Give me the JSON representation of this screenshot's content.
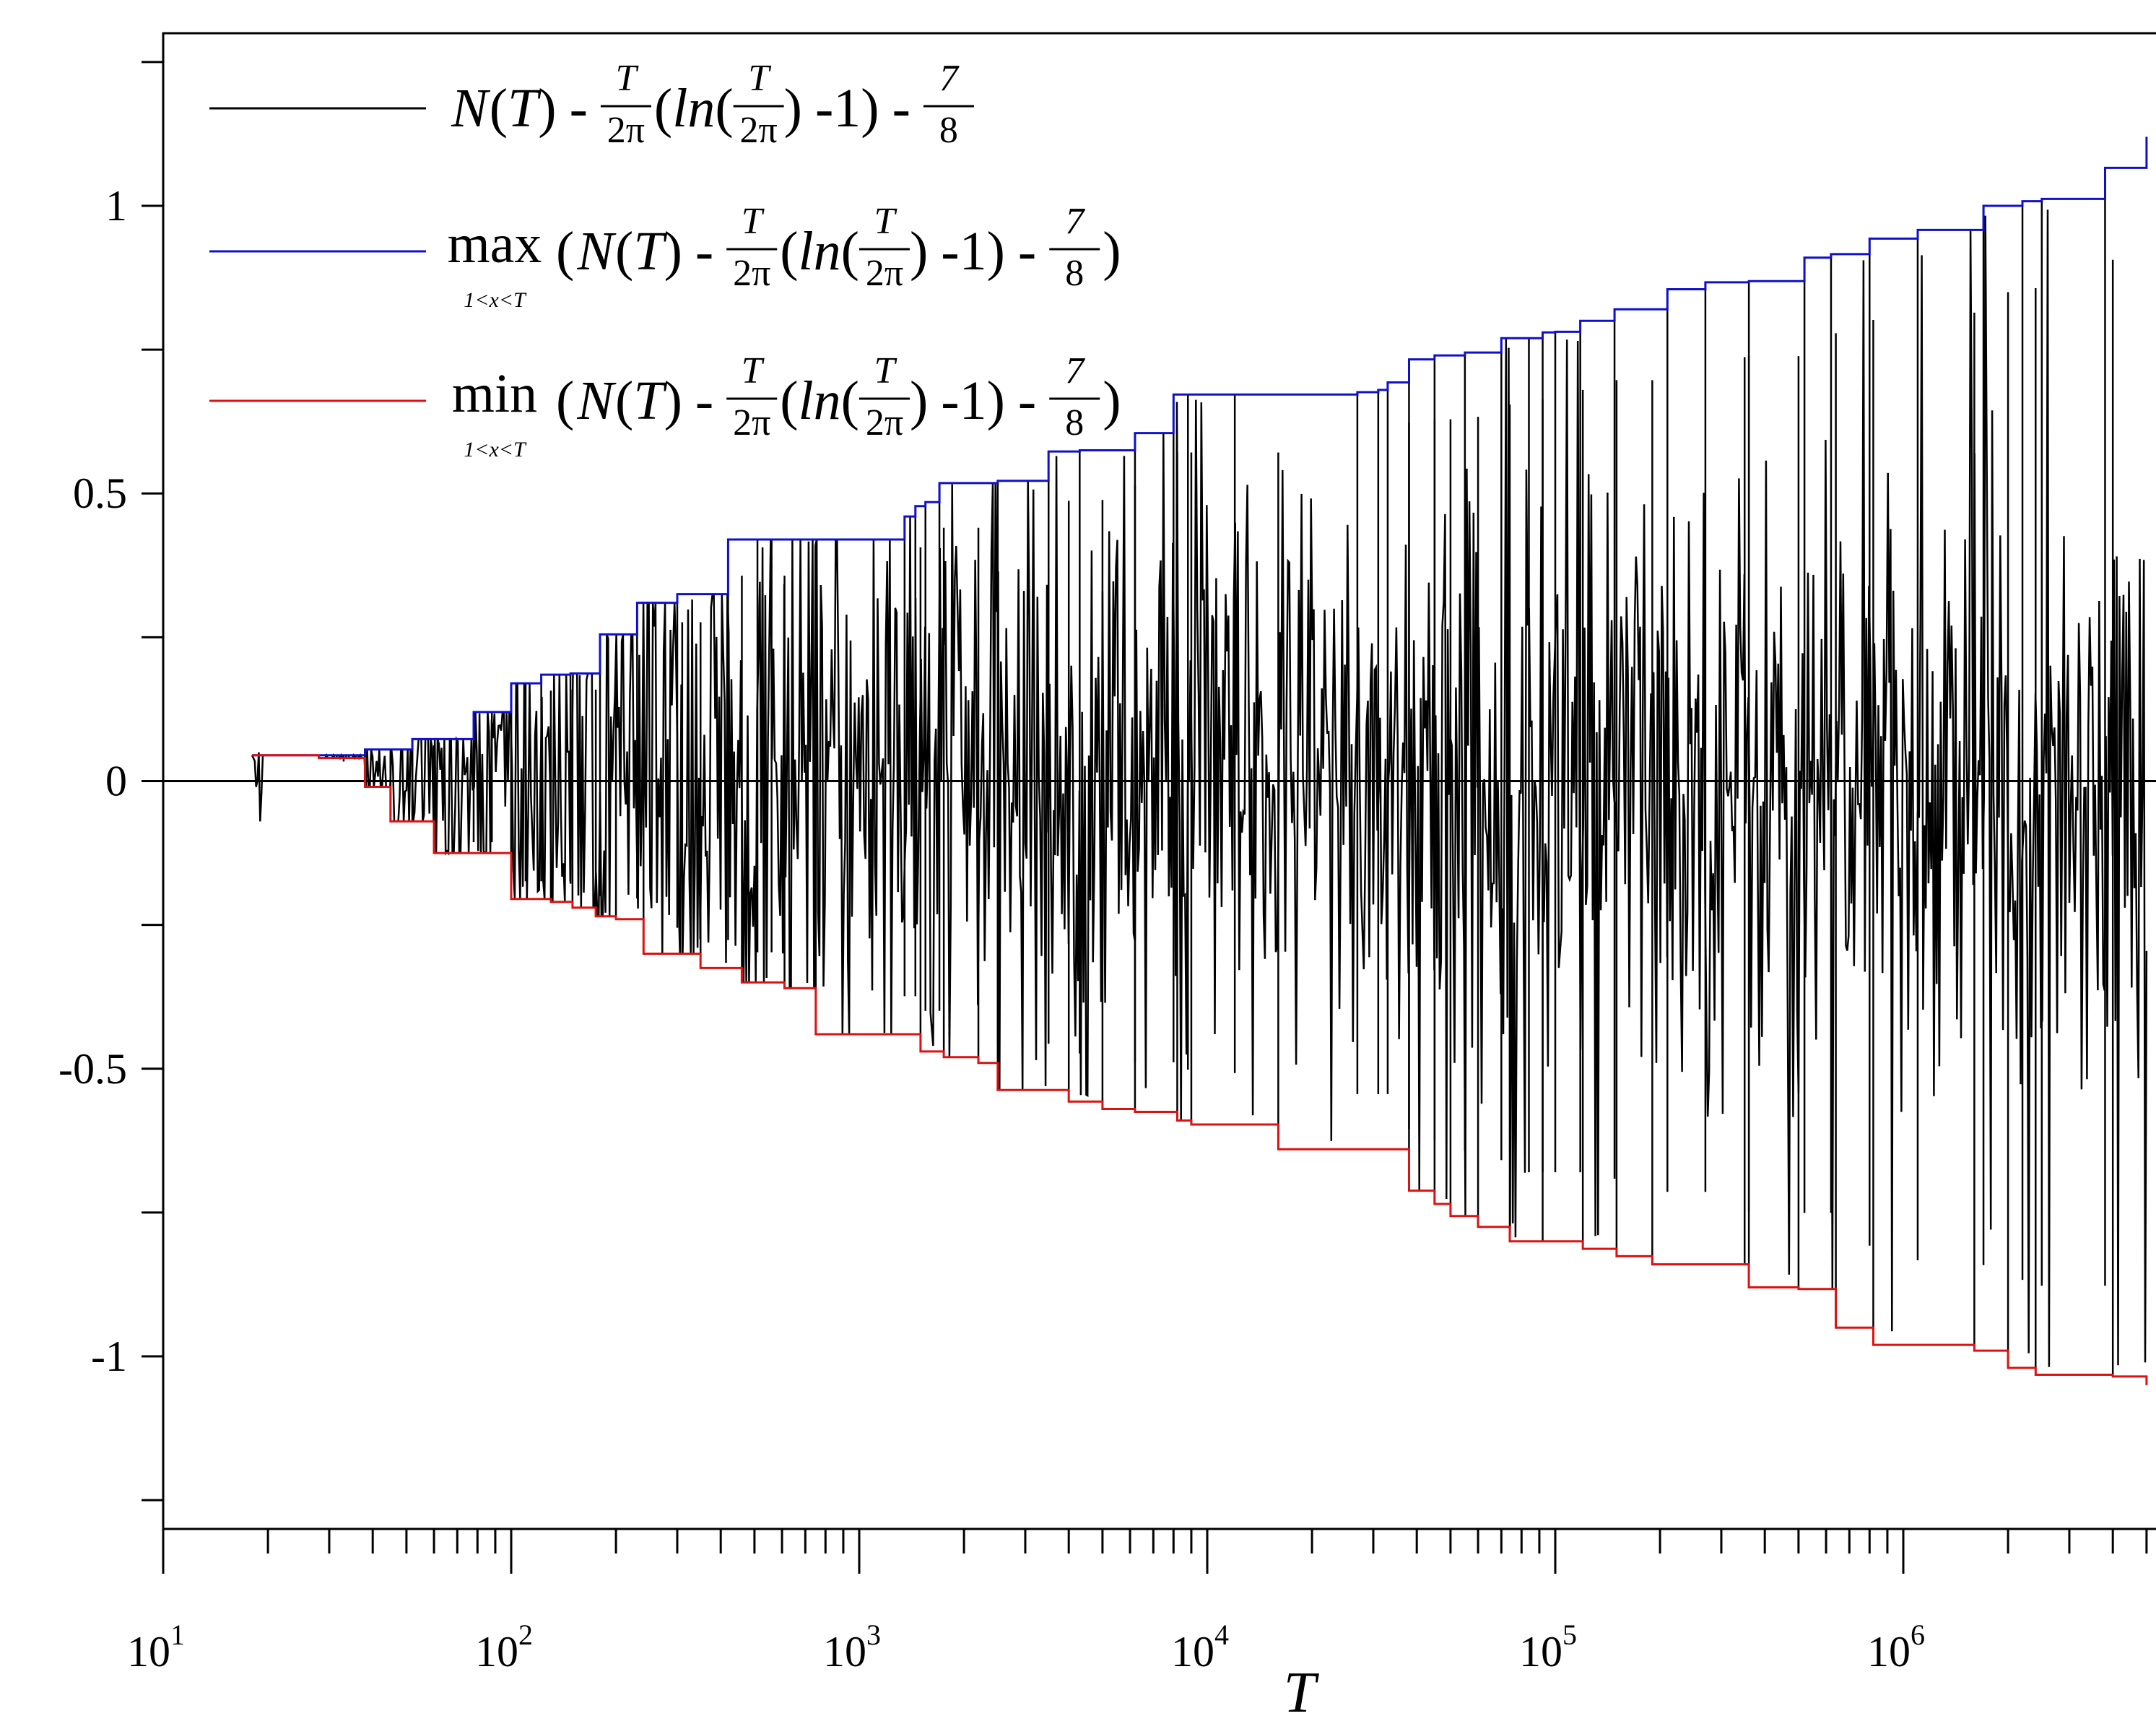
{
  "chart_data": {
    "type": "line",
    "title": "",
    "xlabel": "T",
    "ylabel": "",
    "xscale": "log",
    "xlim": [
      10,
      5000000
    ],
    "ylim": [
      -1.3,
      1.3
    ],
    "x_ticks": [
      {
        "base": "10",
        "exp": "1"
      },
      {
        "base": "10",
        "exp": "2"
      },
      {
        "base": "10",
        "exp": "3"
      },
      {
        "base": "10",
        "exp": "4"
      },
      {
        "base": "10",
        "exp": "5"
      },
      {
        "base": "10",
        "exp": "6"
      }
    ],
    "y_ticks": [
      {
        "value": 1,
        "label": "1"
      },
      {
        "value": 0.5,
        "label": "0.5"
      },
      {
        "value": 0,
        "label": "0"
      },
      {
        "value": -0.5,
        "label": "-0.5"
      },
      {
        "value": -1,
        "label": "-1"
      }
    ],
    "legend_position": "top-left",
    "series": [
      {
        "name": "N(T) - T/2π(ln(T/2π) -1) - 7/8",
        "color": "#000000",
        "kind": "oscillation",
        "seed": 12345,
        "points": 1400
      },
      {
        "name": "max 1<x<T (N(T) - T/2π(ln(T/2π) -1) - 7/8)",
        "color": "#1010cc",
        "kind": "step",
        "x": [
          18,
          33,
          38,
          45,
          52,
          78,
          88,
          100,
          110,
          122,
          148,
          180,
          230,
          300,
          420,
          510,
          560,
          1350,
          1450,
          1550,
          1700,
          2500,
          3500,
          4300,
          6200,
          8000,
          8800,
          12000,
          27000,
          31000,
          33000,
          38000,
          45000,
          55000,
          70000,
          84000,
          92000,
          100000,
          118000,
          148000,
          210000,
          270000,
          360000,
          520000,
          620000,
          800000,
          1100000,
          1700000,
          2200000,
          2500000,
          3800000,
          5000000
        ],
        "y": [
          0.045,
          0.045,
          0.055,
          0.055,
          0.073,
          0.12,
          0.12,
          0.17,
          0.17,
          0.185,
          0.187,
          0.255,
          0.31,
          0.325,
          0.42,
          0.42,
          0.42,
          0.46,
          0.478,
          0.485,
          0.518,
          0.522,
          0.573,
          0.575,
          0.605,
          0.672,
          0.672,
          0.672,
          0.676,
          0.68,
          0.693,
          0.733,
          0.74,
          0.745,
          0.77,
          0.77,
          0.78,
          0.781,
          0.8,
          0.82,
          0.855,
          0.867,
          0.869,
          0.91,
          0.916,
          0.943,
          0.958,
          1.0,
          1.008,
          1.012,
          1.066,
          1.12
        ]
      },
      {
        "name": "min 1<x<T (N(T) - T/2π(ln(T/2π) -1) - 7/8)",
        "color": "#dd1111",
        "kind": "step",
        "x": [
          18,
          28,
          38,
          45,
          52,
          60,
          100,
          130,
          150,
          175,
          200,
          240,
          310,
          350,
          460,
          610,
          750,
          1500,
          1750,
          2200,
          2500,
          4000,
          5000,
          6200,
          8200,
          9000,
          16000,
          38000,
          45000,
          50000,
          60000,
          74000,
          92000,
          120000,
          150000,
          190000,
          350000,
          360000,
          500000,
          640000,
          820000,
          1600000,
          2000000,
          2400000,
          4000000,
          5000000
        ],
        "y": [
          0.045,
          0.04,
          -0.01,
          -0.07,
          -0.07,
          -0.125,
          -0.205,
          -0.21,
          -0.22,
          -0.235,
          -0.24,
          -0.3,
          -0.3,
          -0.325,
          -0.35,
          -0.36,
          -0.44,
          -0.47,
          -0.48,
          -0.49,
          -0.537,
          -0.557,
          -0.57,
          -0.575,
          -0.59,
          -0.597,
          -0.64,
          -0.712,
          -0.735,
          -0.756,
          -0.775,
          -0.8,
          -0.8,
          -0.813,
          -0.826,
          -0.84,
          -0.84,
          -0.88,
          -0.883,
          -0.95,
          -0.98,
          -0.99,
          -1.02,
          -1.032,
          -1.035,
          -1.05
        ]
      }
    ],
    "zero_line": true
  },
  "legend": {
    "items": [
      {
        "prefix": "",
        "sub": "",
        "open": "",
        "close": ""
      },
      {
        "prefix": "max",
        "sub": "1<x<T",
        "open": "(",
        "close": ")"
      },
      {
        "prefix": "min",
        "sub": "1<x<T",
        "open": "(",
        "close": ")"
      }
    ],
    "expr": {
      "N": "N",
      "T": "T",
      "paren_open": "(",
      "paren_close": ")",
      "minus": "-",
      "frac1_num": "T",
      "frac1_den": "2π",
      "ln": "ln",
      "frac2_num": "T",
      "frac2_den": "2π",
      "minus_one": "-1)",
      "frac3_num": "7",
      "frac3_den": "8"
    }
  }
}
